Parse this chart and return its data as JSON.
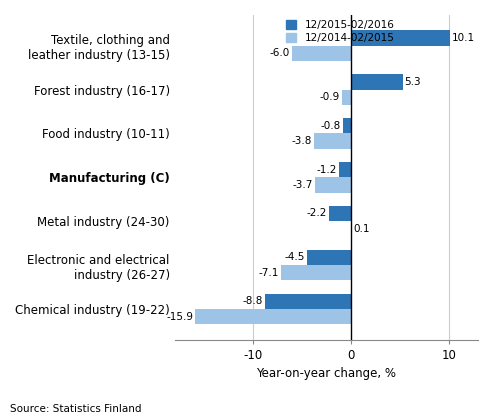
{
  "categories": [
    "Chemical industry (19-22)",
    "Electronic and electrical\nindustry (26-27)",
    "Metal industry (24-30)",
    "Manufacturing (C)",
    "Food industry (10-11)",
    "Forest industry (16-17)",
    "Textile, clothing and\nleather industry (13-15)"
  ],
  "series1_label": "12/2015-02/2016",
  "series2_label": "12/2014-02/2015",
  "series1_values": [
    -8.8,
    -4.5,
    -2.2,
    -1.2,
    -0.8,
    5.3,
    10.1
  ],
  "series2_values": [
    -15.9,
    -7.1,
    0.1,
    -3.7,
    -3.8,
    -0.9,
    -6.0
  ],
  "series1_color": "#2E75B6",
  "series2_color": "#9DC3E6",
  "xlabel": "Year-on-year change, %",
  "xlim": [
    -18,
    13
  ],
  "xticks": [
    -10,
    0,
    10
  ],
  "source": "Source: Statistics Finland",
  "bold_category_index": 3,
  "bar_height": 0.35,
  "title": ""
}
